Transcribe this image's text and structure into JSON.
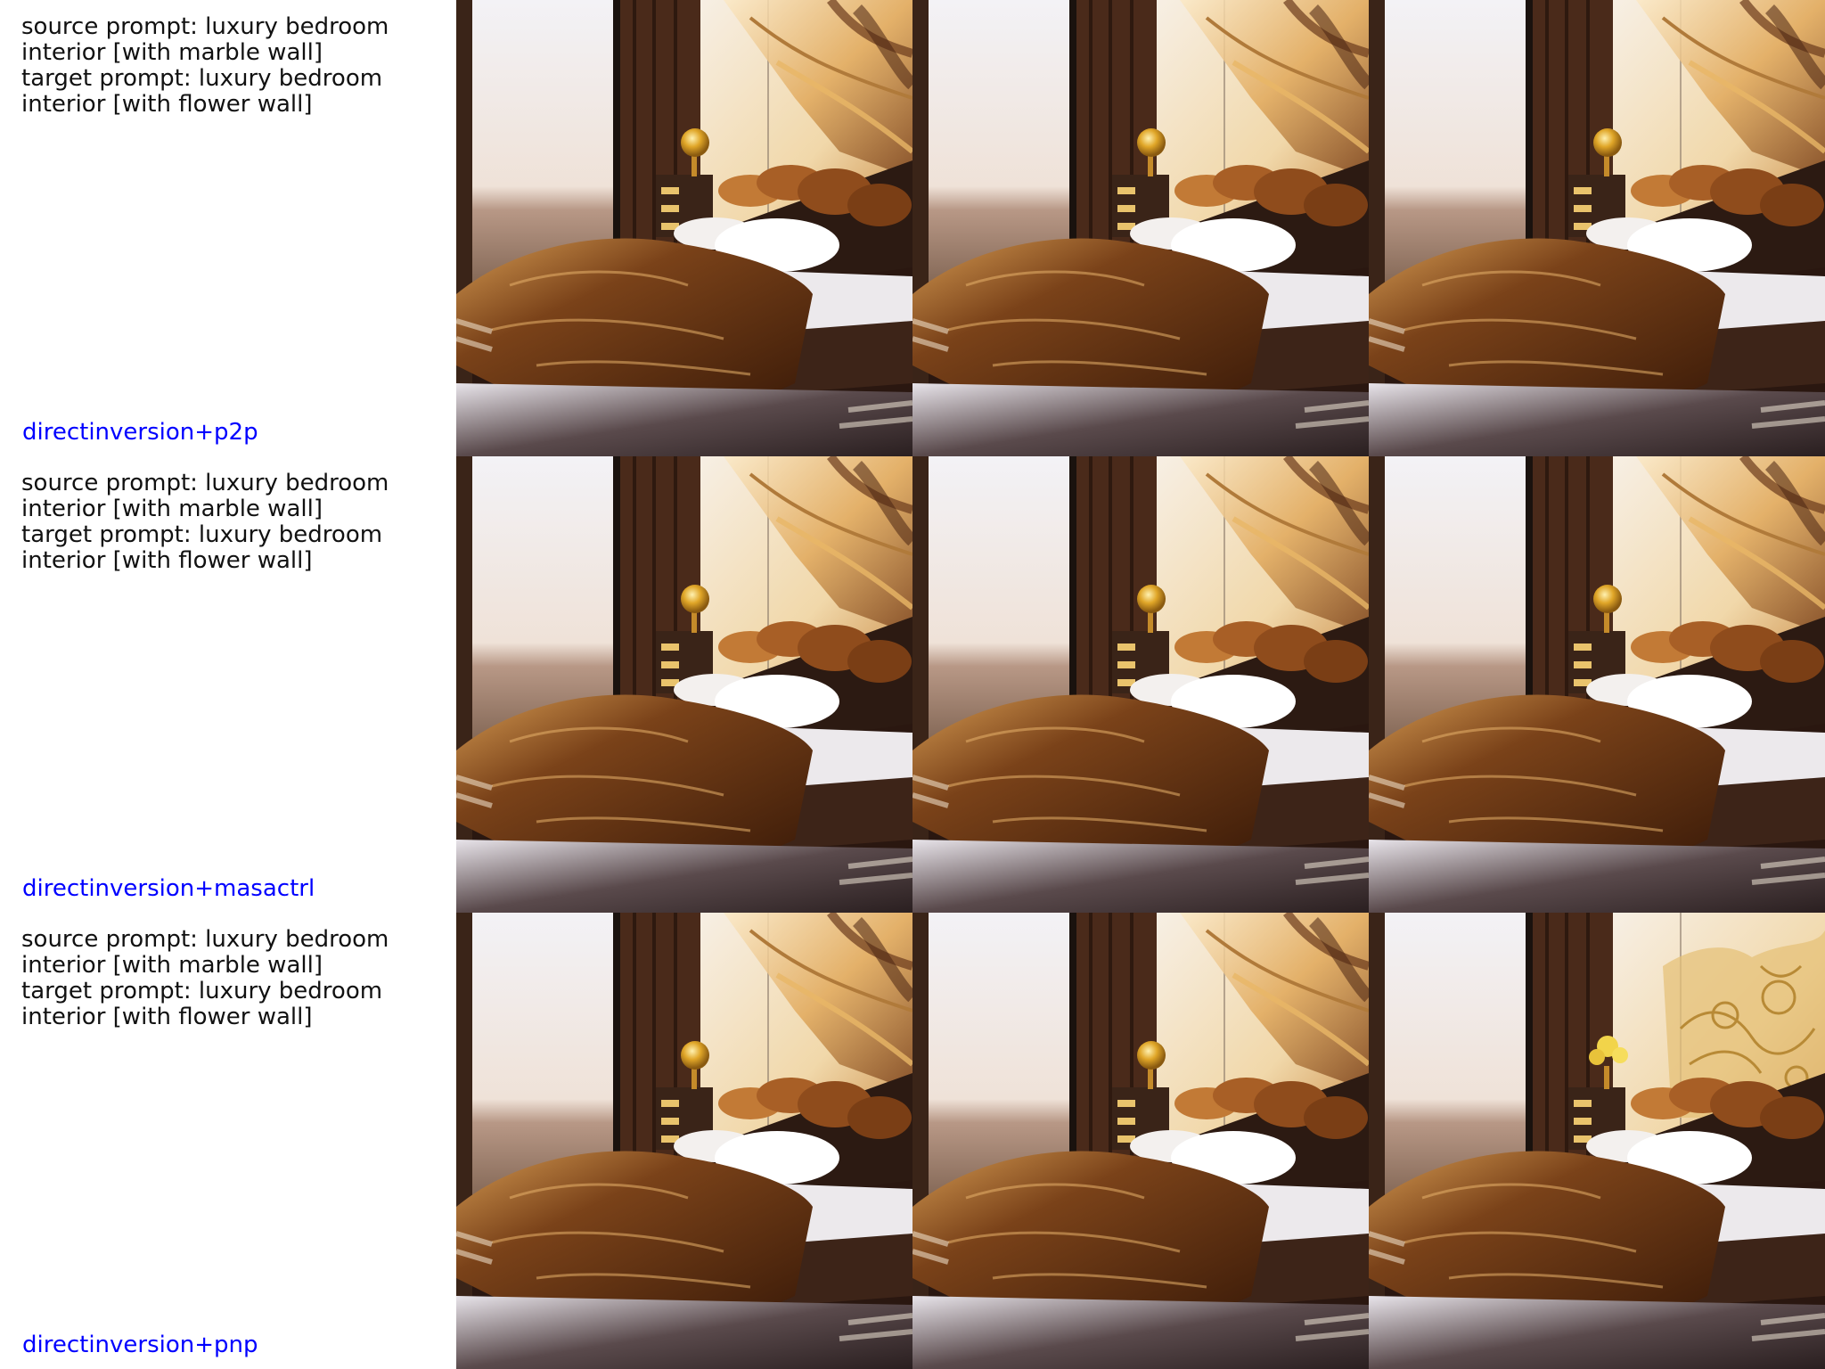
{
  "rows": [
    {
      "prompt_lines": [
        "source prompt: luxury bedroom",
        "interior [with marble wall]",
        "target prompt: luxury bedroom",
        "interior [with flower wall]"
      ],
      "method": "directinversion+p2p",
      "images": [
        {
          "name": "source-image",
          "variant": "marble"
        },
        {
          "name": "edited-image-a",
          "variant": "marble"
        },
        {
          "name": "edited-image-b",
          "variant": "marble"
        }
      ]
    },
    {
      "prompt_lines": [
        "source prompt: luxury bedroom",
        "interior [with marble wall]",
        "target prompt: luxury bedroom",
        "interior [with flower wall]"
      ],
      "method": "directinversion+masactrl",
      "images": [
        {
          "name": "source-image",
          "variant": "marble"
        },
        {
          "name": "edited-image-a",
          "variant": "marble"
        },
        {
          "name": "edited-image-b",
          "variant": "marble"
        }
      ]
    },
    {
      "prompt_lines": [
        "source prompt: luxury bedroom",
        "interior [with marble wall]",
        "target prompt: luxury bedroom",
        "interior [with flower wall]"
      ],
      "method": "directinversion+pnp",
      "images": [
        {
          "name": "source-image",
          "variant": "marble"
        },
        {
          "name": "edited-image-a",
          "variant": "marble"
        },
        {
          "name": "edited-image-b",
          "variant": "flower"
        }
      ]
    }
  ],
  "colors": {
    "method_label": "#0000ff",
    "prompt_text": "#111111",
    "background": "#ffffff"
  }
}
